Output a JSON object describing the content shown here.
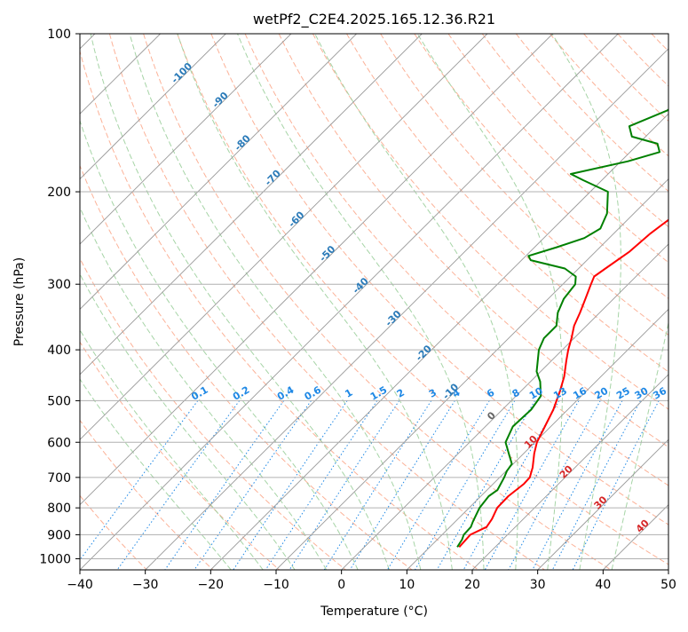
{
  "chart_data": {
    "type": "skew-t",
    "title": "wetPf2_C2E4.2025.165.12.36.R21",
    "xlabel": "Temperature (°C)",
    "ylabel": "Pressure (hPa)",
    "xlim": [
      -40,
      50
    ],
    "ylim": [
      1050,
      100
    ],
    "y_scale": "log",
    "grid": true,
    "x_ticks": [
      "−40",
      "−30",
      "−20",
      "−10",
      "0",
      "10",
      "20",
      "30",
      "40",
      "50"
    ],
    "y_ticks": [
      "100",
      "200",
      "300",
      "400",
      "500",
      "600",
      "700",
      "800",
      "900",
      "1000"
    ],
    "mixing_ratio_labels": [
      "0.1",
      "0.2",
      "0.4",
      "0.6",
      "1",
      "1.5",
      "2",
      "3",
      "4",
      "6",
      "8",
      "10",
      "13",
      "16",
      "20",
      "25",
      "30",
      "36"
    ],
    "dry_adiabat_labels": [
      "-100",
      "-90",
      "-80",
      "-70",
      "-60",
      "-50",
      "-40",
      "-30",
      "-20",
      "-10",
      "0",
      "10",
      "20",
      "30",
      "40"
    ],
    "colors": {
      "temperature": "#ff0000",
      "dewpoint": "#008000",
      "isotherm": "#999999",
      "dry_adiabat": "#fca586",
      "moist_adiabat": "#9ccf9c",
      "mixing_ratio": "#1e88e5",
      "label_blue": "#2b7bb9",
      "label_red": "#d62728"
    },
    "series": [
      {
        "name": "Temperature",
        "points": [
          [
            950,
            14.5
          ],
          [
            900,
            14.3
          ],
          [
            870,
            15.6
          ],
          [
            840,
            15.2
          ],
          [
            800,
            14.3
          ],
          [
            760,
            14.2
          ],
          [
            720,
            14.7
          ],
          [
            700,
            14.6
          ],
          [
            670,
            13.5
          ],
          [
            630,
            11.6
          ],
          [
            600,
            10.3
          ],
          [
            560,
            9.1
          ],
          [
            520,
            7.8
          ],
          [
            480,
            6.0
          ],
          [
            450,
            4.4
          ],
          [
            420,
            2.3
          ],
          [
            400,
            0.9
          ],
          [
            380,
            -0.4
          ],
          [
            360,
            -1.9
          ],
          [
            340,
            -3.0
          ],
          [
            320,
            -4.3
          ],
          [
            300,
            -5.7
          ],
          [
            290,
            -6.4
          ],
          [
            280,
            -5.9
          ],
          [
            260,
            -4.8
          ],
          [
            240,
            -4.4
          ],
          [
            220,
            -3.4
          ],
          [
            200,
            -3.0
          ],
          [
            185,
            -5.6
          ],
          [
            170,
            -9.8
          ],
          [
            160,
            -12.7
          ],
          [
            150,
            -15.9
          ],
          [
            145,
            -18.4
          ],
          [
            140,
            -18.4
          ],
          [
            135,
            -16.8
          ],
          [
            125,
            -16.8
          ],
          [
            110,
            -16.8
          ],
          [
            100,
            -18.2
          ]
        ]
      },
      {
        "name": "Dewpoint",
        "points": [
          [
            950,
            14.2
          ],
          [
            920,
            13.8
          ],
          [
            900,
            13.3
          ],
          [
            870,
            13.2
          ],
          [
            850,
            12.7
          ],
          [
            800,
            11.6
          ],
          [
            760,
            11.2
          ],
          [
            740,
            11.6
          ],
          [
            700,
            10.7
          ],
          [
            680,
            10.1
          ],
          [
            660,
            9.8
          ],
          [
            630,
            7.7
          ],
          [
            600,
            5.5
          ],
          [
            560,
            4.2
          ],
          [
            520,
            4.4
          ],
          [
            490,
            3.8
          ],
          [
            460,
            1.5
          ],
          [
            440,
            -0.6
          ],
          [
            400,
            -3.6
          ],
          [
            380,
            -4.6
          ],
          [
            360,
            -4.6
          ],
          [
            340,
            -6.4
          ],
          [
            320,
            -7.6
          ],
          [
            300,
            -8.1
          ],
          [
            290,
            -9.2
          ],
          [
            280,
            -12.1
          ],
          [
            270,
            -18.6
          ],
          [
            265,
            -19.6
          ],
          [
            255,
            -16.6
          ],
          [
            245,
            -13.8
          ],
          [
            235,
            -12.8
          ],
          [
            220,
            -14.1
          ],
          [
            200,
            -17.3
          ],
          [
            190,
            -22.9
          ],
          [
            185,
            -25.7
          ],
          [
            175,
            -18.9
          ],
          [
            168,
            -15.5
          ],
          [
            162,
            -17.1
          ],
          [
            157,
            -22.1
          ],
          [
            150,
            -24.1
          ],
          [
            140,
            -20.7
          ],
          [
            130,
            -19.7
          ],
          [
            123,
            -21.8
          ],
          [
            118,
            -25.4
          ],
          [
            112,
            -24.6
          ],
          [
            105,
            -25.6
          ],
          [
            102,
            -29.0
          ],
          [
            100,
            -31.8
          ]
        ]
      }
    ]
  }
}
